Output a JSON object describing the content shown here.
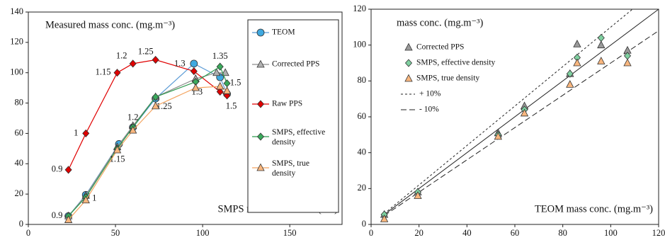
{
  "chart_data": [
    {
      "type": "line",
      "title": "Measured mass conc. (mg.m⁻³)",
      "x_label": "SMPS median diameter (nm)",
      "xlim": [
        0,
        180
      ],
      "xticks": [
        0,
        50,
        100,
        150
      ],
      "ylim": [
        0,
        140
      ],
      "yticks": [
        0,
        20,
        40,
        60,
        80,
        100,
        120,
        140
      ],
      "legend": "right",
      "series": [
        {
          "name": "TEOM",
          "color": "#5b9bd5",
          "marker": "circle",
          "marker_color": "#3fa9e0",
          "x": [
            23,
            33,
            52,
            60,
            73,
            95,
            110,
            114
          ],
          "values": [
            5.5,
            19.5,
            53,
            64,
            83,
            106,
            97,
            86
          ]
        },
        {
          "name": "Corrected PPS",
          "color": "#8c8c8c",
          "marker": "triangle",
          "marker_color": "#b0b0b0",
          "x": [
            23,
            33,
            51,
            60,
            73,
            96,
            108,
            113
          ],
          "values": [
            5.5,
            19,
            51,
            65,
            84,
            96,
            100,
            100
          ]
        },
        {
          "name": "Raw PPS",
          "color": "#e00000",
          "marker": "diamond",
          "marker_color": "#e00000",
          "x": [
            23,
            33,
            51,
            60,
            73,
            95,
            110,
            114
          ],
          "values": [
            36,
            60,
            100,
            106,
            108.5,
            101,
            87.5,
            85
          ],
          "point_labels": [
            "0.9",
            "1",
            "1.15",
            "1.2",
            "1.25",
            "1.3",
            null,
            "1.5"
          ]
        },
        {
          "name": "SMPS, effective density",
          "color": "#2e9a4e",
          "marker": "diamond",
          "marker_color": "#3aaa5c",
          "x": [
            23,
            33,
            51,
            60,
            73,
            96,
            110,
            114
          ],
          "values": [
            5.5,
            18,
            50,
            64,
            84,
            94,
            104,
            93
          ],
          "point_labels": [
            "0.9",
            "1",
            "1.15",
            "1.2",
            "1.25",
            "1.3",
            "1.35",
            "1.5"
          ]
        },
        {
          "name": "SMPS, true density",
          "color": "#f4a460",
          "marker": "triangle",
          "marker_color": "#f8b67e",
          "x": [
            23,
            33,
            51,
            60,
            73,
            96,
            110,
            114
          ],
          "values": [
            3,
            16,
            49,
            62,
            78,
            90,
            91,
            88
          ]
        }
      ]
    },
    {
      "type": "scatter",
      "title": "mass conc. (mg.m⁻³)",
      "x_label": "TEOM mass conc.  (mg.m⁻³)",
      "xlim": [
        0,
        120
      ],
      "xticks": [
        0,
        20,
        40,
        60,
        80,
        100,
        120
      ],
      "ylim": [
        0,
        120
      ],
      "yticks": [
        0,
        20,
        40,
        60,
        80,
        100,
        120
      ],
      "legend": "upper left",
      "series": [
        {
          "name": "Corrected PPS",
          "marker": "triangle",
          "marker_color": "#9a9a9a",
          "x": [
            5.5,
            19.5,
            53,
            64,
            83,
            86,
            96,
            107
          ],
          "values": [
            5.5,
            18,
            51,
            66,
            84,
            100.5,
            100,
            97
          ]
        },
        {
          "name": "SMPS, effective density",
          "marker": "diamond",
          "marker_color": "#7fd0a0",
          "x": [
            5.5,
            19.5,
            53,
            64,
            83,
            86,
            96,
            107
          ],
          "values": [
            5.5,
            18,
            50,
            64,
            84,
            93,
            104,
            94
          ]
        },
        {
          "name": "SMPS, true density",
          "marker": "triangle",
          "marker_color": "#f8b67e",
          "x": [
            5.5,
            19.5,
            53,
            64,
            83,
            86,
            96,
            107
          ],
          "values": [
            3,
            16,
            49,
            62,
            78,
            90,
            91,
            90
          ]
        }
      ],
      "lines": [
        {
          "slope": 1,
          "style": "solid"
        },
        {
          "name": "+ 10%",
          "slope": 1.1,
          "style": "dotted"
        },
        {
          "name": "- 10%",
          "slope": 0.9,
          "style": "dashed"
        }
      ]
    }
  ]
}
